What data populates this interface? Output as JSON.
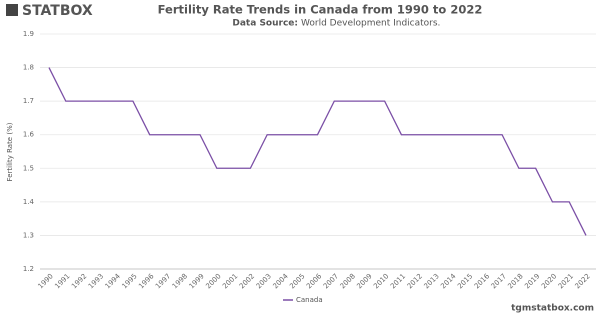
{
  "logo": "STATBOX",
  "watermark": "tgmstatbox.com",
  "chart_data": {
    "type": "line",
    "title": "Fertility Rate Trends in Canada from 1990 to 2022",
    "source_label": "Data Source:",
    "source": "World Development Indicators.",
    "y_label": "Fertility Rate (%)",
    "categories": [
      "1990",
      "1991",
      "1992",
      "1993",
      "1994",
      "1995",
      "1996",
      "1997",
      "1998",
      "1999",
      "2000",
      "2001",
      "2002",
      "2003",
      "2004",
      "2005",
      "2006",
      "2007",
      "2008",
      "2009",
      "2010",
      "2011",
      "2012",
      "2013",
      "2014",
      "2015",
      "2016",
      "2017",
      "2018",
      "2019",
      "2020",
      "2021",
      "2022"
    ],
    "series": [
      {
        "name": "Canada",
        "color": "#7b4fa6",
        "values": [
          1.8,
          1.7,
          1.7,
          1.7,
          1.7,
          1.7,
          1.6,
          1.6,
          1.6,
          1.6,
          1.5,
          1.5,
          1.5,
          1.6,
          1.6,
          1.6,
          1.6,
          1.7,
          1.7,
          1.7,
          1.7,
          1.6,
          1.6,
          1.6,
          1.6,
          1.6,
          1.6,
          1.6,
          1.5,
          1.5,
          1.4,
          1.4,
          1.3
        ]
      }
    ],
    "ylim": [
      1.2,
      1.9
    ],
    "yticks": [
      1.2,
      1.3,
      1.4,
      1.5,
      1.6,
      1.7,
      1.8,
      1.9
    ],
    "grid": true
  }
}
